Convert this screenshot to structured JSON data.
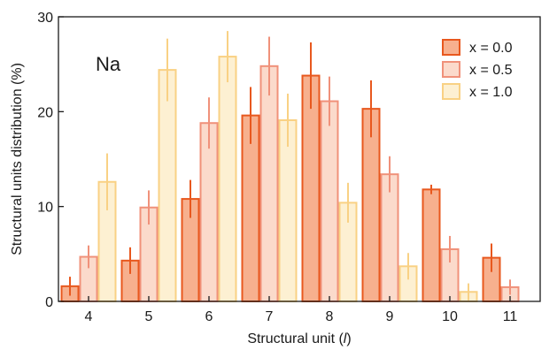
{
  "chart_data": {
    "type": "bar",
    "annotation": "Na",
    "xlabel": "Structural unit (l)",
    "ylabel": "Structural units distribution (%)",
    "ylim": [
      0,
      30
    ],
    "yticks": [
      0,
      10,
      20,
      30
    ],
    "categories": [
      "4",
      "5",
      "6",
      "7",
      "8",
      "9",
      "10",
      "11"
    ],
    "legend_position": "top-right",
    "series": [
      {
        "name": "x = 0.0",
        "fill": "#f7b08e",
        "stroke": "#e8581e",
        "error": "#e8581e",
        "values": [
          1.6,
          4.3,
          10.8,
          19.6,
          23.8,
          20.3,
          11.8,
          4.6
        ],
        "errors": [
          1.0,
          1.4,
          2.0,
          3.0,
          3.5,
          3.0,
          0.5,
          1.5
        ]
      },
      {
        "name": "x = 0.5",
        "fill": "#fbdacb",
        "stroke": "#f0917a",
        "error": "#f0917a",
        "values": [
          4.7,
          9.9,
          18.8,
          24.8,
          21.1,
          13.4,
          5.5,
          1.5
        ],
        "errors": [
          1.2,
          1.8,
          2.7,
          3.1,
          2.6,
          1.9,
          1.4,
          0.8
        ]
      },
      {
        "name": "x = 1.0",
        "fill": "#fdf0d2",
        "stroke": "#f9d184",
        "error": "#f9d184",
        "values": [
          12.6,
          24.4,
          25.8,
          19.1,
          10.4,
          3.7,
          1.0,
          null
        ],
        "errors": [
          3.0,
          3.3,
          2.7,
          2.8,
          2.1,
          1.4,
          0.9,
          null
        ]
      }
    ]
  }
}
